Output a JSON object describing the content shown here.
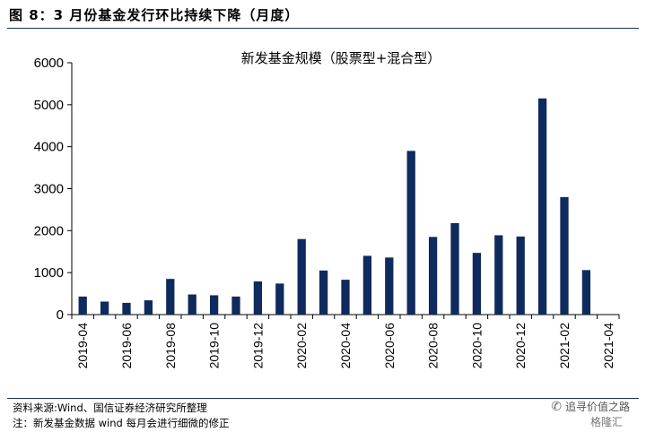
{
  "figure": {
    "title": "图 8：3 月份基金发行环比持续下降（月度）"
  },
  "chart_data": {
    "type": "bar",
    "title": "新发基金规模（股票型+混合型）",
    "xlabel": "",
    "ylabel": "",
    "ylim": [
      0,
      6000
    ],
    "yticks": [
      0,
      1000,
      2000,
      3000,
      4000,
      5000,
      6000
    ],
    "grid": false,
    "legend": "none",
    "bar_color": "#0f2a5c",
    "categories": [
      "2019-04",
      "2019-05",
      "2019-06",
      "2019-07",
      "2019-08",
      "2019-09",
      "2019-10",
      "2019-11",
      "2019-12",
      "2020-01",
      "2020-02",
      "2020-03",
      "2020-04",
      "2020-05",
      "2020-06",
      "2020-07",
      "2020-08",
      "2020-09",
      "2020-10",
      "2020-11",
      "2020-12",
      "2021-01",
      "2021-02",
      "2021-03",
      "2021-04"
    ],
    "xtick_labels": [
      "2019-04",
      "2019-06",
      "2019-08",
      "2019-10",
      "2019-12",
      "2020-02",
      "2020-04",
      "2020-06",
      "2020-08",
      "2020-10",
      "2020-12",
      "2021-02",
      "2021-04"
    ],
    "values": [
      430,
      310,
      280,
      340,
      850,
      480,
      460,
      430,
      790,
      740,
      1800,
      1050,
      830,
      1400,
      1360,
      3900,
      1850,
      2180,
      1470,
      1890,
      1860,
      5150,
      2800,
      1060,
      null
    ]
  },
  "footer": {
    "source": "资料来源:Wind、国信证券经济研究所整理",
    "note": "注：新发基金数据 wind 每月会进行细微的修正",
    "watermark_text": "追寻价值之路",
    "watermark_icon": "wechat-icon",
    "watermark_brand": "格隆汇"
  }
}
